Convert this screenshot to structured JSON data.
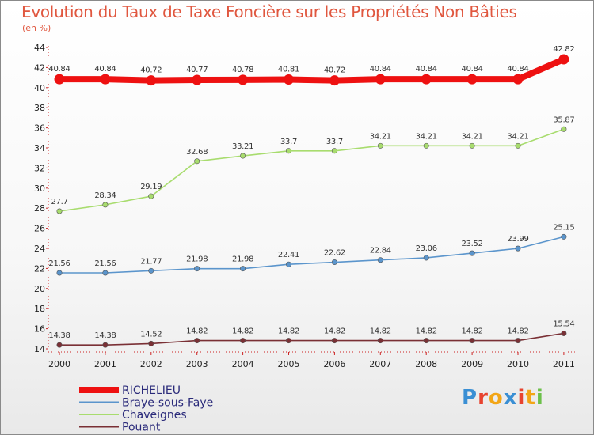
{
  "title": "Evolution du Taux de Taxe Foncière sur les Propriétés Non Bâties",
  "subtitle": "(en %)",
  "logo": {
    "letters": [
      "P",
      "r",
      "o",
      "x",
      "i",
      "t",
      "i"
    ],
    "colors": [
      "#3a8fd4",
      "#e8432f",
      "#f2a516",
      "#3a8fd4",
      "#e8432f",
      "#f2a516",
      "#6cc04a"
    ]
  },
  "chart_data": {
    "type": "line",
    "title": "Evolution du Taux de Taxe Foncière sur les Propriétés Non Bâties",
    "ylabel": "(en %)",
    "xlabel": "",
    "categories": [
      "2000",
      "2001",
      "2002",
      "2003",
      "2004",
      "2005",
      "2006",
      "2007",
      "2008",
      "2009",
      "2010",
      "2011"
    ],
    "ylim": [
      14,
      44
    ],
    "yticks": [
      "14",
      "16",
      "18",
      "20",
      "22",
      "24",
      "26",
      "28",
      "30",
      "32",
      "34",
      "36",
      "38",
      "40",
      "42",
      "44"
    ],
    "legend_position": "bottom-left",
    "series": [
      {
        "name": "RICHELIEU",
        "color": "#ee1111",
        "emphasis": true,
        "values": [
          40.84,
          40.84,
          40.72,
          40.77,
          40.78,
          40.81,
          40.72,
          40.84,
          40.84,
          40.84,
          40.84,
          42.82
        ],
        "labels": [
          "40.84",
          "40.84",
          "40.72",
          "40.77",
          "40.78",
          "40.81",
          "40.72",
          "40.84",
          "40.84",
          "40.84",
          "40.84",
          "42.82"
        ]
      },
      {
        "name": "Braye-sous-Faye",
        "color": "#5b95cc",
        "emphasis": false,
        "values": [
          21.56,
          21.56,
          21.77,
          21.98,
          21.98,
          22.41,
          22.62,
          22.84,
          23.06,
          23.52,
          23.99,
          25.15
        ],
        "labels": [
          "21.56",
          "21.56",
          "21.77",
          "21.98",
          "21.98",
          "22.41",
          "22.62",
          "22.84",
          "23.06",
          "23.52",
          "23.99",
          "25.15"
        ]
      },
      {
        "name": "Chaveignes",
        "color": "#a8dc6e",
        "emphasis": false,
        "values": [
          27.7,
          28.34,
          29.19,
          32.68,
          33.21,
          33.7,
          33.7,
          34.21,
          34.21,
          34.21,
          34.21,
          35.87
        ],
        "labels": [
          "27.7",
          "28.34",
          "29.19",
          "32.68",
          "33.21",
          "33.7",
          "33.7",
          "34.21",
          "34.21",
          "34.21",
          "34.21",
          "35.87"
        ]
      },
      {
        "name": "Pouant",
        "color": "#7a3035",
        "emphasis": false,
        "values": [
          14.38,
          14.38,
          14.52,
          14.82,
          14.82,
          14.82,
          14.82,
          14.82,
          14.82,
          14.82,
          14.82,
          15.54
        ],
        "labels": [
          "14.38",
          "14.38",
          "14.52",
          "14.82",
          "14.82",
          "14.82",
          "14.82",
          "14.82",
          "14.82",
          "14.82",
          "14.82",
          "15.54"
        ]
      }
    ]
  }
}
